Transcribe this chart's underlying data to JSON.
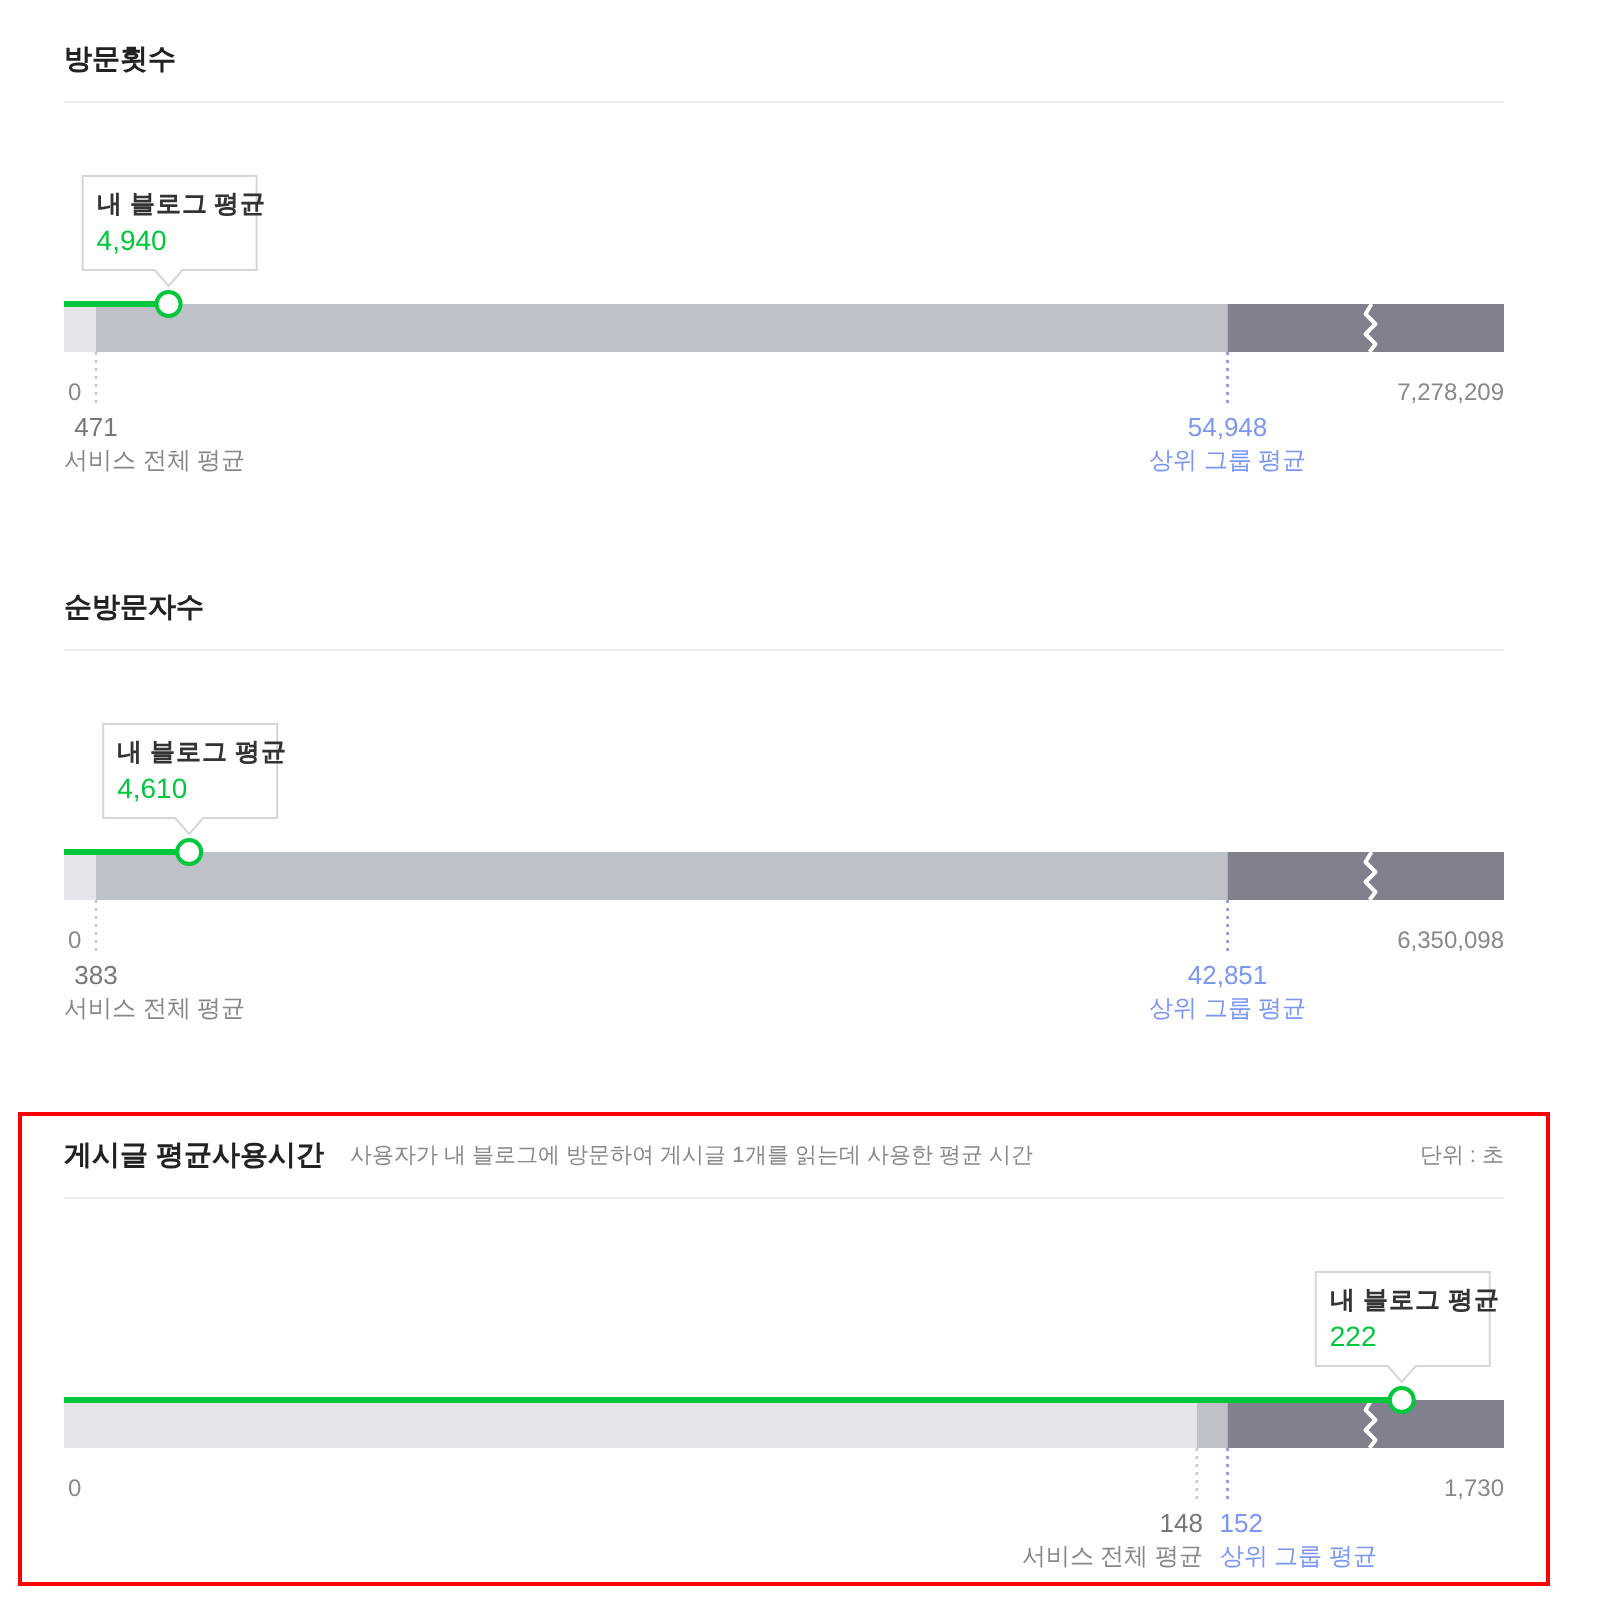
{
  "chart_data": [
    {
      "type": "other",
      "title": "방문횟수",
      "annotations": [
        "0",
        "7,278,209"
      ],
      "categories": [
        "서비스 전체 평균",
        "상위 그룹 평균",
        "내 블로그 평균"
      ],
      "values": [
        471,
        54948,
        4940
      ],
      "value_labels": [
        "471",
        "54,948",
        "4,940"
      ],
      "colors": [
        "#777777",
        "#7b97f5",
        "#00c73c"
      ]
    },
    {
      "type": "other",
      "title": "순방문자수",
      "annotations": [
        "0",
        "6,350,098"
      ],
      "categories": [
        "서비스 전체 평균",
        "상위 그룹 평균",
        "내 블로그 평균"
      ],
      "values": [
        383,
        42851,
        4610
      ],
      "value_labels": [
        "383",
        "42,851",
        "4,610"
      ],
      "colors": [
        "#777777",
        "#7b97f5",
        "#00c73c"
      ]
    },
    {
      "type": "other",
      "title": "게시글 평균사용시간",
      "subtitle": "사용자가 내 블로그에 방문하여 게시글 1개를 읽는데 사용한 평균 시간",
      "annotations": [
        "0",
        "1,730",
        "단위 : 초"
      ],
      "categories": [
        "서비스 전체 평균",
        "상위 그룹 평균",
        "내 블로그 평균"
      ],
      "values": [
        148,
        152,
        222
      ],
      "value_labels": [
        "148",
        "152",
        "222"
      ],
      "colors": [
        "#777777",
        "#7b97f5",
        "#00c73c"
      ]
    }
  ]
}
